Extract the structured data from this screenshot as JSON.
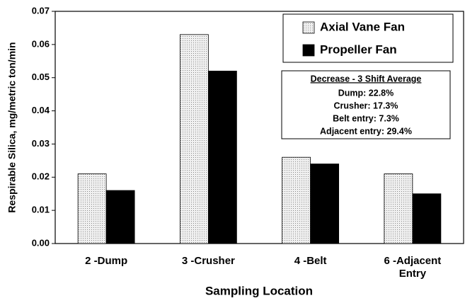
{
  "chart_data": {
    "type": "bar",
    "xlabel": "Sampling Location",
    "ylabel": "Respirable Silica, mg/metric ton/min",
    "categories": [
      "2 -Dump",
      "3 -Crusher",
      "4 -Belt",
      "6 -Adjacent Entry"
    ],
    "series": [
      {
        "name": "Axial Vane Fan",
        "color": "#d4d4d4",
        "values": [
          0.021,
          0.063,
          0.026,
          0.021
        ]
      },
      {
        "name": "Propeller Fan",
        "color": "#000000",
        "values": [
          0.016,
          0.052,
          0.024,
          0.015
        ]
      }
    ],
    "ylim": [
      0,
      0.07
    ],
    "yticks": [
      {
        "value": 0,
        "label": "0.00"
      },
      0.01,
      0.02,
      0.03,
      0.04,
      0.05,
      0.06,
      0.07
    ],
    "grid": false,
    "legend": "upper right",
    "annotation": {
      "title": "Decrease - 3 Shift Average",
      "lines": [
        "Dump:  22.8%",
        "Crusher:  17.3%",
        "Belt entry:  7.3%",
        "Adjacent entry:  29.4%"
      ]
    }
  }
}
